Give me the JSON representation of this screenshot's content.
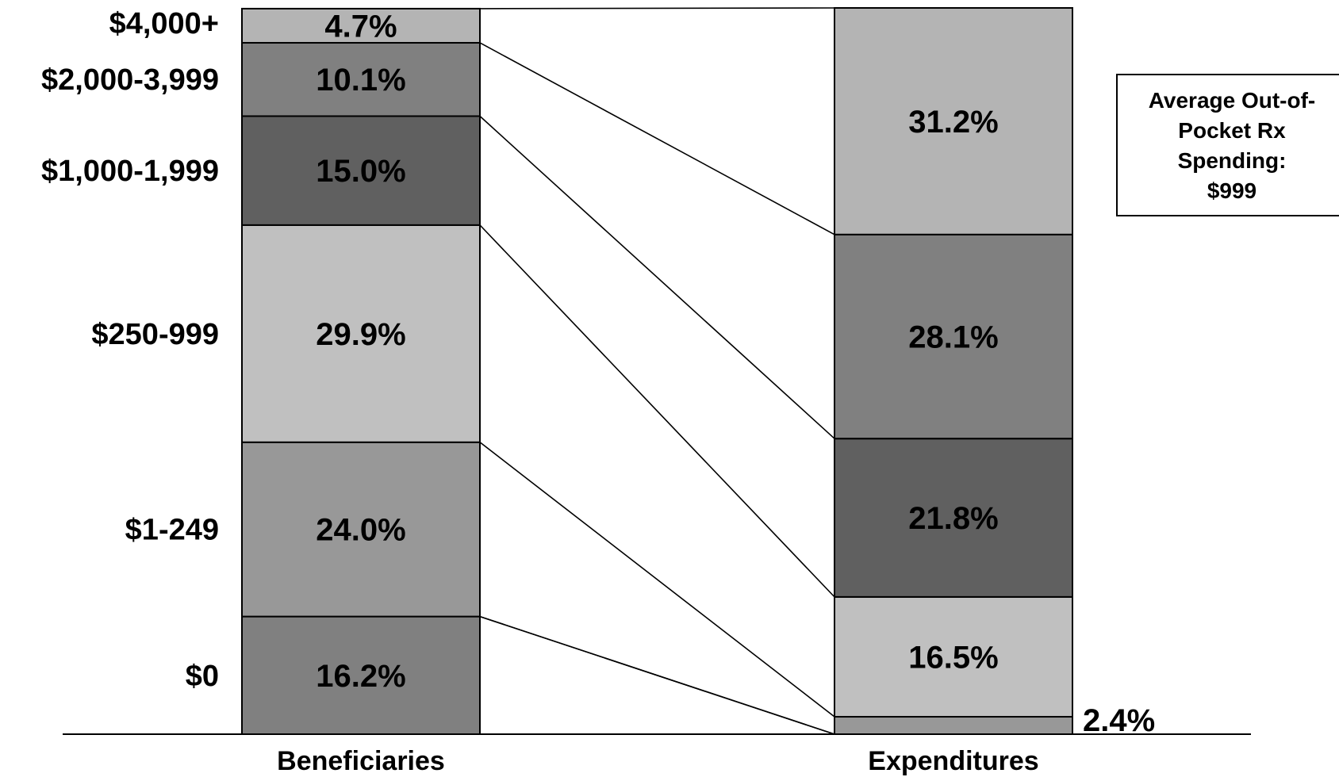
{
  "chart_data": {
    "type": "bar",
    "stacked": true,
    "percent_stacked": true,
    "categories": [
      "Beneficiaries",
      "Expenditures"
    ],
    "series": [
      {
        "name": "$0",
        "values": [
          16.2,
          0.0
        ],
        "color": "#808080"
      },
      {
        "name": "$1-249",
        "values": [
          24.0,
          2.4
        ],
        "color": "#989898"
      },
      {
        "name": "$250-999",
        "values": [
          29.9,
          16.5
        ],
        "color": "#c0c0c0"
      },
      {
        "name": "$1,000-1,999",
        "values": [
          15.0,
          21.8
        ],
        "color": "#606060"
      },
      {
        "name": "$2,000-3,999",
        "values": [
          10.1,
          28.1
        ],
        "color": "#808080"
      },
      {
        "name": "$4,000+",
        "values": [
          4.7,
          31.2
        ],
        "color": "#b4b4b4"
      }
    ],
    "segment_labels": [
      [
        "16.2%",
        "24.0%",
        "29.9%",
        "15.0%",
        "10.1%",
        "4.7%"
      ],
      [
        "",
        "2.4%",
        "16.5%",
        "21.8%",
        "28.1%",
        "31.2%"
      ]
    ],
    "ylim": [
      0,
      100
    ],
    "grid": false,
    "legend": "none",
    "connector_lines": true
  },
  "note": {
    "lines": [
      "Average Out-of-",
      "Pocket Rx",
      "Spending:",
      "$999"
    ]
  }
}
